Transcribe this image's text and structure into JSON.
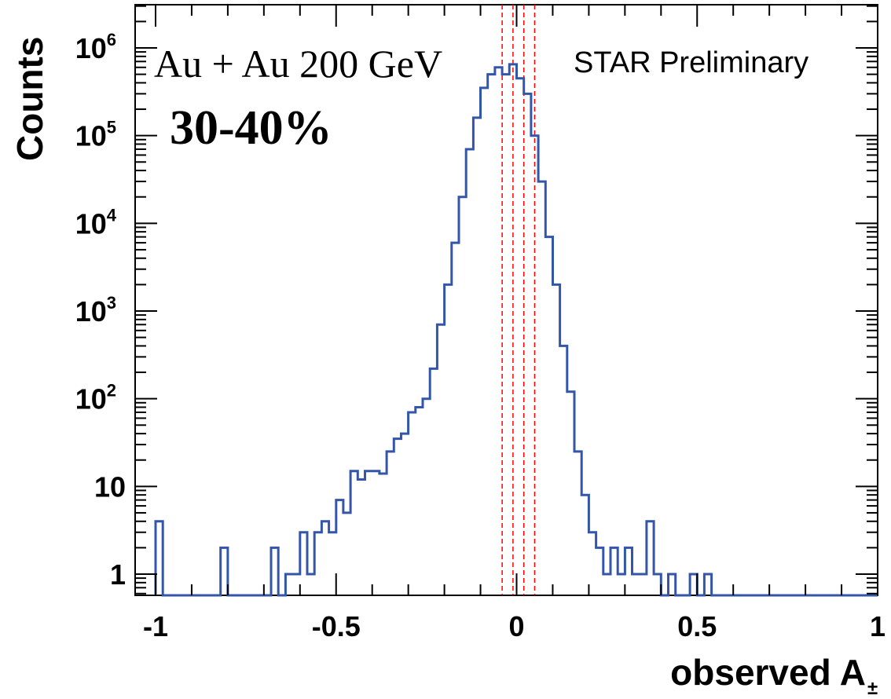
{
  "chart_data": {
    "type": "histogram",
    "title": "",
    "xlabel": "observed A",
    "xlabel_subscript": "±",
    "ylabel": "Counts",
    "xlim": [
      -1.05,
      1.05
    ],
    "ylim": [
      0.5,
      3000000
    ],
    "yscale": "log",
    "grid": false,
    "x_ticks": [
      -1,
      -0.5,
      0,
      0.5,
      1
    ],
    "x_tick_labels": [
      "-1",
      "-0.5",
      "0",
      "0.5",
      "1"
    ],
    "y_ticks": [
      {
        "value": 1,
        "base": "1",
        "exp": ""
      },
      {
        "value": 10,
        "base": "10",
        "exp": ""
      },
      {
        "value": 100,
        "base": "10",
        "exp": "2"
      },
      {
        "value": 1000,
        "base": "10",
        "exp": "3"
      },
      {
        "value": 10000,
        "base": "10",
        "exp": "4"
      },
      {
        "value": 100000,
        "base": "10",
        "exp": "5"
      },
      {
        "value": 1000000,
        "base": "10",
        "exp": "6"
      }
    ],
    "annotations": {
      "system": "Au + Au 200 GeV",
      "centrality": "30-40%",
      "collaboration": "STAR Preliminary"
    },
    "series": [
      {
        "color": "#3355aa",
        "bin_edges": [
          -1.0,
          -0.98,
          -0.96,
          -0.94,
          -0.92,
          -0.9,
          -0.88,
          -0.86,
          -0.84,
          -0.82,
          -0.8,
          -0.78,
          -0.76,
          -0.74,
          -0.72,
          -0.7,
          -0.68,
          -0.66,
          -0.64,
          -0.62,
          -0.6,
          -0.58,
          -0.56,
          -0.54,
          -0.52,
          -0.5,
          -0.48,
          -0.46,
          -0.44,
          -0.42,
          -0.4,
          -0.38,
          -0.36,
          -0.34,
          -0.32,
          -0.3,
          -0.28,
          -0.26,
          -0.24,
          -0.22,
          -0.2,
          -0.18,
          -0.16,
          -0.14,
          -0.12,
          -0.1,
          -0.08,
          -0.06,
          -0.04,
          -0.02,
          0.0,
          0.02,
          0.04,
          0.06,
          0.08,
          0.1,
          0.12,
          0.14,
          0.16,
          0.18,
          0.2,
          0.22,
          0.24,
          0.26,
          0.28,
          0.3,
          0.32,
          0.34,
          0.36,
          0.38,
          0.4,
          0.42,
          0.44,
          0.46,
          0.48,
          0.5,
          0.52,
          0.54,
          0.56,
          0.58,
          0.6,
          0.62,
          0.64,
          0.66,
          0.68,
          0.7,
          0.72,
          0.74,
          0.76,
          0.78,
          0.8,
          0.82,
          0.84,
          0.86,
          0.88,
          0.9,
          0.92,
          0.94,
          0.96,
          0.98,
          1.0
        ],
        "counts": [
          4,
          0,
          0,
          0,
          0,
          0,
          0,
          0,
          0,
          2,
          0,
          0,
          0,
          0,
          0,
          0,
          2,
          0,
          1,
          1,
          3,
          1,
          3,
          4,
          3,
          7,
          5,
          15,
          12,
          15,
          15,
          14,
          25,
          35,
          40,
          70,
          80,
          100,
          220,
          700,
          2000,
          6000,
          20000,
          70000,
          160000,
          350000,
          500000,
          600000,
          500000,
          650000,
          450000,
          300000,
          100000,
          30000,
          7000,
          2000,
          400,
          120,
          25,
          8,
          3,
          2,
          1,
          2,
          1,
          2,
          1,
          1,
          4,
          1,
          0,
          1,
          0,
          0,
          1,
          0,
          1,
          0,
          0,
          0,
          0,
          0,
          0,
          0,
          0,
          0,
          0,
          0,
          0,
          0,
          0,
          0,
          0,
          0,
          0,
          0,
          0,
          0,
          0,
          0
        ]
      }
    ],
    "vertical_lines": {
      "color": "#ff0000",
      "style": "dashed",
      "x": [
        -0.04,
        -0.01,
        0.02,
        0.05
      ]
    }
  }
}
